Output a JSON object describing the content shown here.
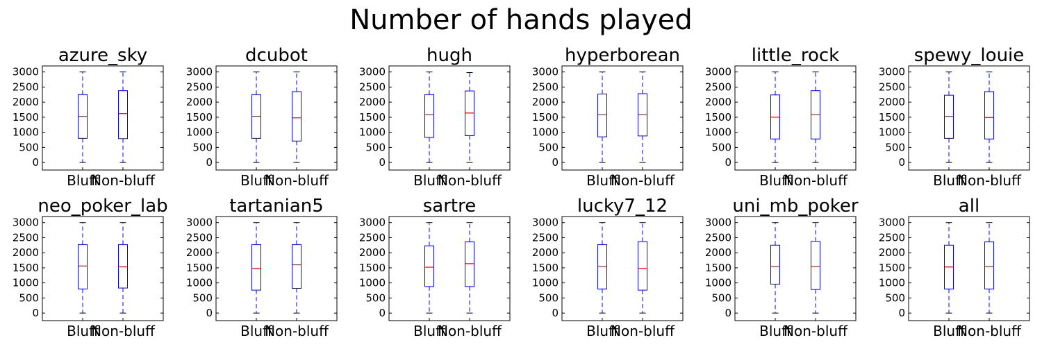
{
  "title": "Number of hands played",
  "chart_data": {
    "type": "box",
    "title": "Number of hands played",
    "categories": [
      "Bluff",
      "Non-bluff"
    ],
    "ylim": [
      -250,
      3200
    ],
    "yticks": [
      0,
      500,
      1000,
      1500,
      2000,
      2500,
      3000
    ],
    "grid": false,
    "colors": {
      "box": "#0000ff",
      "median": "#ff0000",
      "whisker": "#0000ff"
    },
    "panels": [
      {
        "name": "azure_sky",
        "boxes": [
          {
            "category": "Bluff",
            "min": 0,
            "q1": 800,
            "median": 1530,
            "q3": 2250,
            "max": 3000
          },
          {
            "category": "Non-bluff",
            "min": 0,
            "q1": 790,
            "median": 1620,
            "q3": 2380,
            "max": 3000
          }
        ]
      },
      {
        "name": "dcubot",
        "boxes": [
          {
            "category": "Bluff",
            "min": 0,
            "q1": 800,
            "median": 1530,
            "q3": 2250,
            "max": 3000
          },
          {
            "category": "Non-bluff",
            "min": 0,
            "q1": 710,
            "median": 1480,
            "q3": 2350,
            "max": 3000
          }
        ]
      },
      {
        "name": "hugh",
        "boxes": [
          {
            "category": "Bluff",
            "min": 0,
            "q1": 830,
            "median": 1580,
            "q3": 2250,
            "max": 3000
          },
          {
            "category": "Non-bluff",
            "min": 0,
            "q1": 890,
            "median": 1640,
            "q3": 2370,
            "max": 2980
          }
        ]
      },
      {
        "name": "hyperborean",
        "boxes": [
          {
            "category": "Bluff",
            "min": 0,
            "q1": 850,
            "median": 1580,
            "q3": 2270,
            "max": 3000
          },
          {
            "category": "Non-bluff",
            "min": 0,
            "q1": 880,
            "median": 1580,
            "q3": 2280,
            "max": 3000
          }
        ]
      },
      {
        "name": "little_rock",
        "boxes": [
          {
            "category": "Bluff",
            "min": 0,
            "q1": 780,
            "median": 1500,
            "q3": 2240,
            "max": 3000
          },
          {
            "category": "Non-bluff",
            "min": 0,
            "q1": 780,
            "median": 1580,
            "q3": 2380,
            "max": 3000
          }
        ]
      },
      {
        "name": "spewy_louie",
        "boxes": [
          {
            "category": "Bluff",
            "min": 0,
            "q1": 800,
            "median": 1530,
            "q3": 2230,
            "max": 3000
          },
          {
            "category": "Non-bluff",
            "min": 0,
            "q1": 780,
            "median": 1490,
            "q3": 2350,
            "max": 3000
          }
        ]
      },
      {
        "name": "neo_poker_lab",
        "boxes": [
          {
            "category": "Bluff",
            "min": 0,
            "q1": 800,
            "median": 1560,
            "q3": 2270,
            "max": 3000
          },
          {
            "category": "Non-bluff",
            "min": 0,
            "q1": 830,
            "median": 1540,
            "q3": 2270,
            "max": 3000
          }
        ]
      },
      {
        "name": "tartanian5",
        "boxes": [
          {
            "category": "Bluff",
            "min": 0,
            "q1": 760,
            "median": 1480,
            "q3": 2270,
            "max": 3000
          },
          {
            "category": "Non-bluff",
            "min": 0,
            "q1": 820,
            "median": 1600,
            "q3": 2270,
            "max": 3000
          }
        ]
      },
      {
        "name": "sartre",
        "boxes": [
          {
            "category": "Bluff",
            "min": 0,
            "q1": 880,
            "median": 1520,
            "q3": 2230,
            "max": 3000
          },
          {
            "category": "Non-bluff",
            "min": 0,
            "q1": 880,
            "median": 1640,
            "q3": 2360,
            "max": 3000
          }
        ]
      },
      {
        "name": "lucky7_12",
        "boxes": [
          {
            "category": "Bluff",
            "min": 0,
            "q1": 800,
            "median": 1550,
            "q3": 2270,
            "max": 3000
          },
          {
            "category": "Non-bluff",
            "min": 0,
            "q1": 760,
            "median": 1480,
            "q3": 2370,
            "max": 3000
          }
        ]
      },
      {
        "name": "uni_mb_poker",
        "boxes": [
          {
            "category": "Bluff",
            "min": 0,
            "q1": 960,
            "median": 1550,
            "q3": 2250,
            "max": 3000
          },
          {
            "category": "Non-bluff",
            "min": 0,
            "q1": 780,
            "median": 1550,
            "q3": 2380,
            "max": 3000
          }
        ]
      },
      {
        "name": "all",
        "boxes": [
          {
            "category": "Bluff",
            "min": 0,
            "q1": 800,
            "median": 1530,
            "q3": 2250,
            "max": 3000
          },
          {
            "category": "Non-bluff",
            "min": 0,
            "q1": 800,
            "median": 1550,
            "q3": 2360,
            "max": 3000
          }
        ]
      }
    ]
  }
}
